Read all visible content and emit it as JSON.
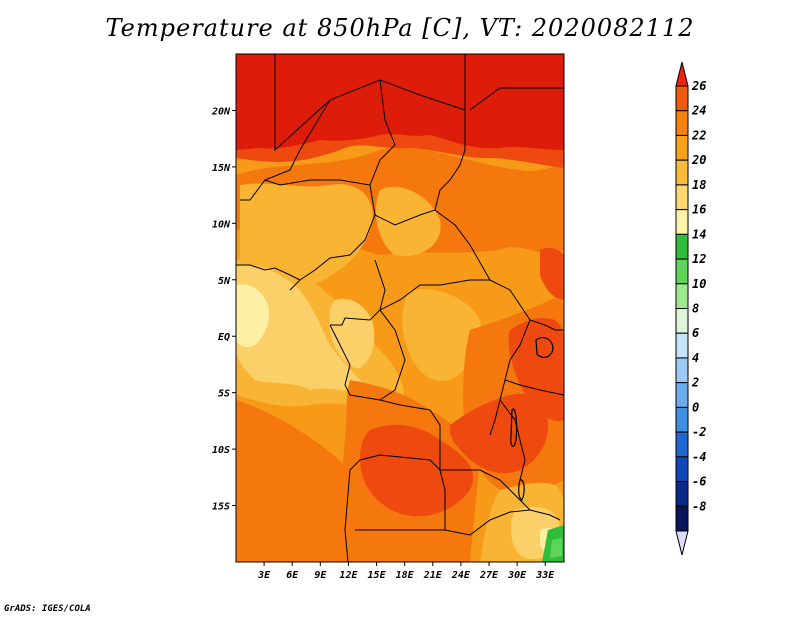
{
  "title": "Temperature at 850hPa [C], VT: 2020082112",
  "footer": "GrADS: IGES/COLA",
  "map": {
    "lon_range": [
      0,
      35
    ],
    "lat_range": [
      -20,
      25
    ],
    "x_ticks": [
      {
        "value": 3,
        "label": "3E"
      },
      {
        "value": 6,
        "label": "6E"
      },
      {
        "value": 9,
        "label": "9E"
      },
      {
        "value": 12,
        "label": "12E"
      },
      {
        "value": 15,
        "label": "15E"
      },
      {
        "value": 18,
        "label": "18E"
      },
      {
        "value": 21,
        "label": "21E"
      },
      {
        "value": 24,
        "label": "24E"
      },
      {
        "value": 27,
        "label": "27E"
      },
      {
        "value": 30,
        "label": "30E"
      },
      {
        "value": 33,
        "label": "33E"
      }
    ],
    "y_ticks": [
      {
        "value": 20,
        "label": "20N"
      },
      {
        "value": 15,
        "label": "15N"
      },
      {
        "value": 10,
        "label": "10N"
      },
      {
        "value": 5,
        "label": "5N"
      },
      {
        "value": 0,
        "label": "EQ"
      },
      {
        "value": -5,
        "label": "5S"
      },
      {
        "value": -10,
        "label": "10S"
      },
      {
        "value": -15,
        "label": "15S"
      }
    ]
  },
  "colorbar": {
    "levels": [
      26,
      24,
      22,
      20,
      18,
      16,
      14,
      12,
      10,
      8,
      6,
      4,
      2,
      0,
      -2,
      -4,
      -6,
      -8
    ],
    "colors": [
      "#e8250f",
      "#f05a0c",
      "#f5820d",
      "#f7a21b",
      "#fabb3a",
      "#fcd86e",
      "#fdf3a6",
      "#2fbd3a",
      "#5fd45a",
      "#9ee890",
      "#dcf5d6",
      "#c4e4fa",
      "#9cc9f5",
      "#6aacef",
      "#3f8fe5",
      "#1f68d3",
      "#1048b5",
      "#0a2a8a",
      "#08155e",
      "#dcdcf6"
    ]
  },
  "fields": {
    "c26": "#dd1d0a",
    "c24": "#ee4a10",
    "c22": "#f5780f",
    "c20": "#f79a17",
    "c18": "#f9b433",
    "c16": "#fbd068",
    "c14": "#fdf0a4",
    "c12": "#2fbd3a",
    "c10": "#5fd45a",
    "border": "#000000"
  }
}
